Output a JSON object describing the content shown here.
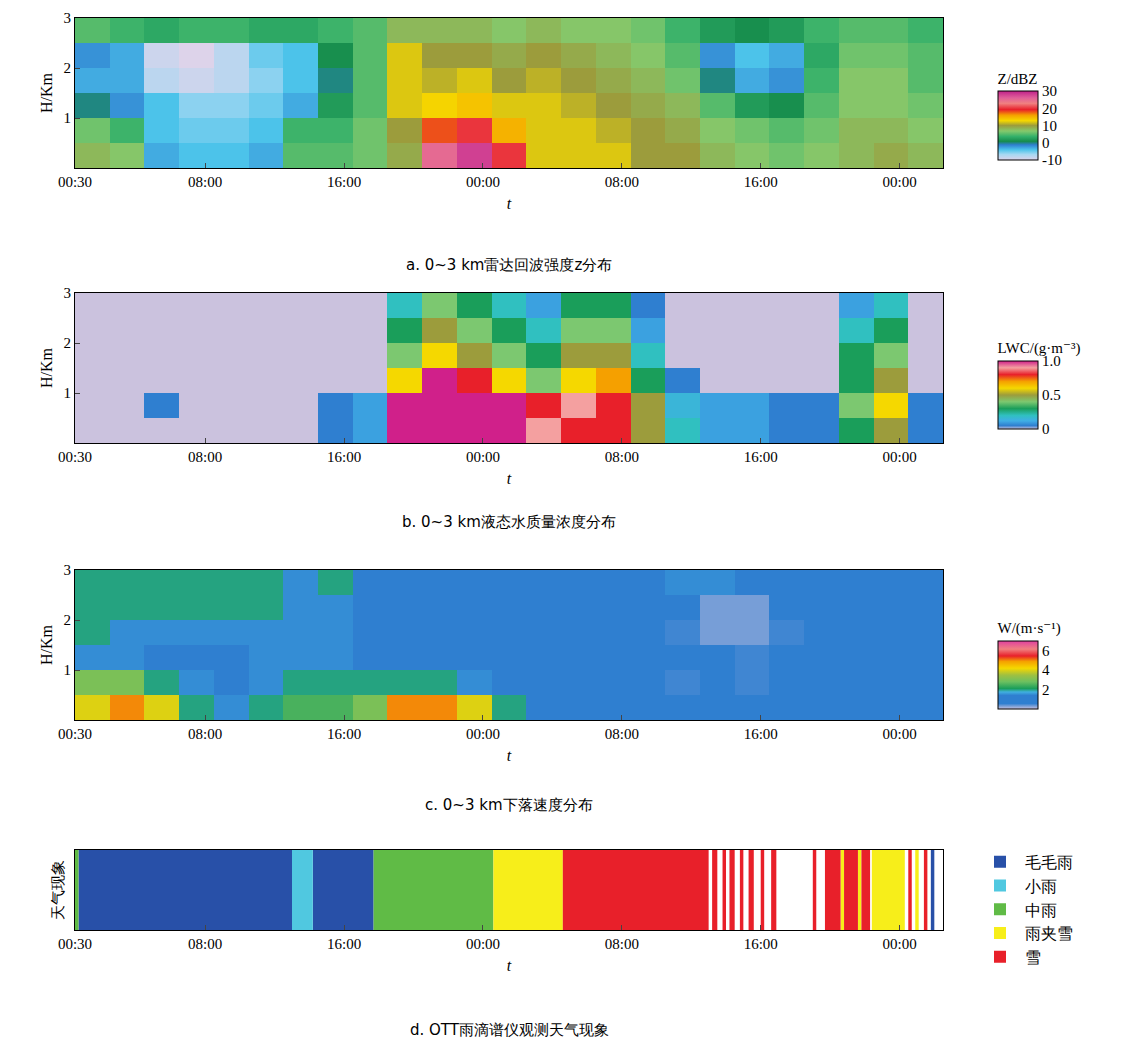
{
  "chart_data": [
    {
      "type": "heatmap",
      "title": "a. 0~3 km雷达回波强度z分布",
      "xlabel": "t",
      "ylabel": "H/Km",
      "x": [
        1.5,
        3.5,
        5.5,
        7.5,
        9.5,
        11.5,
        13.5,
        15.5,
        17.5,
        19.5,
        21.5,
        23.5,
        25.5,
        27.5,
        29.5,
        31.5,
        33.5,
        35.5,
        37.5,
        39.5,
        41.5,
        43.5,
        45.5,
        47.5,
        49.5
      ],
      "y": [
        0.25,
        0.75,
        1.25,
        1.75,
        2.25,
        2.75
      ],
      "cells": [
        [
          8,
          7,
          -3,
          -4,
          -4,
          -3,
          5,
          5,
          6,
          9,
          25,
          28,
          20,
          12,
          12,
          12,
          10,
          10,
          8,
          7,
          6,
          7,
          8,
          9,
          8
        ],
        [
          6,
          4,
          -4,
          -5,
          -5,
          -4,
          4,
          4,
          6,
          10,
          18,
          20,
          15,
          12,
          12,
          11,
          10,
          9,
          7,
          6,
          5,
          6,
          8,
          8,
          7
        ],
        [
          0,
          -2,
          -4,
          -6,
          -6,
          -5,
          -3,
          2,
          5,
          12,
          13,
          14,
          12,
          12,
          11,
          10,
          9,
          8,
          5,
          2,
          1,
          5,
          7,
          7,
          6
        ],
        [
          -3,
          -3,
          -8,
          -9,
          -8,
          -6,
          -4,
          0,
          5,
          12,
          11,
          12,
          10,
          11,
          10,
          9,
          8,
          6,
          0,
          -3,
          -2,
          4,
          7,
          7,
          5
        ],
        [
          -2,
          -3,
          -9,
          -10,
          -8,
          -5,
          -4,
          1,
          5,
          12,
          10,
          10,
          9,
          10,
          9,
          8,
          7,
          5,
          -2,
          -4,
          -3,
          3,
          6,
          6,
          5
        ],
        [
          5,
          4,
          3,
          4,
          4,
          3,
          3,
          4,
          5,
          8,
          8,
          8,
          7,
          8,
          7,
          7,
          6,
          4,
          2,
          1,
          2,
          4,
          5,
          5,
          4
        ]
      ],
      "xlim": [
        0.5,
        50.5
      ],
      "xticks": [
        {
          "value": 0.5,
          "label": "00:30"
        },
        {
          "value": 8,
          "label": "08:00"
        },
        {
          "value": 16,
          "label": "16:00"
        },
        {
          "value": 24,
          "label": "00:00"
        },
        {
          "value": 32,
          "label": "08:00"
        },
        {
          "value": 40,
          "label": "16:00"
        },
        {
          "value": 48,
          "label": "00:00"
        }
      ],
      "ylim": [
        0,
        3
      ],
      "yticks": [
        1,
        2,
        3
      ],
      "colorbar_title": "Z/dBZ",
      "colorbar_range": [
        -10,
        30
      ],
      "colorbar_ticks": [
        -10,
        0,
        10,
        20,
        30
      ]
    },
    {
      "type": "heatmap",
      "title": "b. 0~3 km液态水质量浓度分布",
      "xlabel": "t",
      "ylabel": "H/Km",
      "x": [
        1.5,
        3.5,
        5.5,
        7.5,
        9.5,
        11.5,
        13.5,
        15.5,
        17.5,
        19.5,
        21.5,
        23.5,
        25.5,
        27.5,
        29.5,
        31.5,
        33.5,
        35.5,
        37.5,
        39.5,
        41.5,
        43.5,
        45.5,
        47.5,
        49.5
      ],
      "y": [
        0.25,
        0.75,
        1.25,
        1.75,
        2.25,
        2.75
      ],
      "cells": [
        [
          0,
          0,
          0,
          0,
          0,
          0,
          0,
          0.05,
          0.1,
          1,
          1,
          1,
          1,
          0.9,
          0.8,
          0.8,
          0.5,
          0.2,
          0.1,
          0.1,
          0.05,
          0.05,
          0.3,
          0.5,
          0.05
        ],
        [
          0,
          0,
          0.05,
          0,
          0,
          0,
          0,
          0.05,
          0.1,
          1,
          1,
          1,
          1,
          0.8,
          0.9,
          0.8,
          0.5,
          0.15,
          0.1,
          0.1,
          0.05,
          0.05,
          0.4,
          0.6,
          0.05
        ],
        [
          0,
          0,
          0,
          0,
          0,
          0,
          0,
          0,
          0,
          0.6,
          1,
          0.8,
          0.6,
          0.4,
          0.6,
          0.7,
          0.3,
          0.05,
          0,
          0,
          0,
          0,
          0.3,
          0.5,
          0
        ],
        [
          0,
          0,
          0,
          0,
          0,
          0,
          0,
          0,
          0,
          0.4,
          0.6,
          0.5,
          0.4,
          0.3,
          0.5,
          0.5,
          0.2,
          0,
          0,
          0,
          0,
          0,
          0.3,
          0.4,
          0
        ],
        [
          0,
          0,
          0,
          0,
          0,
          0,
          0,
          0,
          0,
          0.3,
          0.5,
          0.4,
          0.3,
          0.2,
          0.4,
          0.4,
          0.1,
          0,
          0,
          0,
          0,
          0,
          0.2,
          0.3,
          0
        ],
        [
          0,
          0,
          0,
          0,
          0,
          0,
          0,
          0,
          0,
          0.2,
          0.4,
          0.3,
          0.2,
          0.1,
          0.3,
          0.3,
          0.05,
          0,
          0,
          0,
          0,
          0,
          0.1,
          0.2,
          0
        ]
      ],
      "xlim": [
        0.5,
        50.5
      ],
      "xticks": [
        {
          "value": 0.5,
          "label": "00:30"
        },
        {
          "value": 8,
          "label": "08:00"
        },
        {
          "value": 16,
          "label": "16:00"
        },
        {
          "value": 24,
          "label": "00:00"
        },
        {
          "value": 32,
          "label": "08:00"
        },
        {
          "value": 40,
          "label": "16:00"
        },
        {
          "value": 48,
          "label": "00:00"
        }
      ],
      "ylim": [
        0,
        3
      ],
      "yticks": [
        1,
        2,
        3
      ],
      "colorbar_title": "LWC/(g·m⁻³)",
      "colorbar_range": [
        0,
        1
      ],
      "colorbar_ticks": [
        0,
        0.5,
        {
          "value": 1,
          "label": "1.0"
        }
      ]
    },
    {
      "type": "heatmap",
      "title": "c. 0~3 km下落速度分布",
      "xlabel": "t",
      "ylabel": "H/Km",
      "x": [
        1.5,
        3.5,
        5.5,
        7.5,
        9.5,
        11.5,
        13.5,
        15.5,
        17.5,
        19.5,
        21.5,
        23.5,
        25.5,
        27.5,
        29.5,
        31.5,
        33.5,
        35.5,
        37.5,
        39.5,
        41.5,
        43.5,
        45.5,
        47.5,
        49.5
      ],
      "y": [
        0.25,
        0.75,
        1.25,
        1.75,
        2.25,
        2.75
      ],
      "cells": [
        [
          4,
          5,
          4,
          2,
          1.5,
          2,
          2.5,
          2.5,
          3,
          5,
          5,
          4,
          2,
          1,
          1,
          1,
          1,
          1,
          1,
          1,
          1,
          1,
          1,
          1,
          1
        ],
        [
          3,
          3,
          2,
          1.5,
          1,
          1.5,
          2,
          2,
          2,
          2,
          2,
          1.5,
          1,
          1,
          1,
          1,
          1,
          0.5,
          0.8,
          0.5,
          1,
          1,
          1,
          1,
          1
        ],
        [
          1.5,
          1.5,
          1,
          1,
          1,
          1.5,
          1.5,
          1.5,
          1,
          1,
          1,
          1,
          1,
          1,
          1,
          1,
          1,
          0.8,
          0.8,
          0.5,
          0.8,
          1,
          1,
          1,
          1
        ],
        [
          2,
          1.5,
          1.5,
          1.5,
          1.5,
          1.5,
          1.5,
          1.5,
          1,
          1,
          1,
          1,
          1,
          1,
          1,
          1,
          1,
          0.5,
          0.3,
          0.3,
          0.5,
          1,
          1,
          1,
          1
        ],
        [
          2,
          2,
          2,
          2,
          2,
          2,
          1.5,
          1.5,
          1,
          1,
          1,
          1,
          1,
          1,
          1,
          1,
          1,
          0.8,
          0.3,
          0.3,
          0.8,
          1,
          1,
          1,
          1
        ],
        [
          2,
          2,
          2,
          2,
          2,
          2,
          1.5,
          2,
          1,
          1,
          1,
          1,
          1,
          1,
          1,
          1,
          1,
          1.5,
          1.5,
          1,
          1,
          1,
          1,
          1,
          1
        ]
      ],
      "xlim": [
        0.5,
        50.5
      ],
      "xticks": [
        {
          "value": 0.5,
          "label": "00:30"
        },
        {
          "value": 8,
          "label": "08:00"
        },
        {
          "value": 16,
          "label": "16:00"
        },
        {
          "value": 24,
          "label": "00:00"
        },
        {
          "value": 32,
          "label": "08:00"
        },
        {
          "value": 40,
          "label": "16:00"
        },
        {
          "value": 48,
          "label": "00:00"
        }
      ],
      "ylim": [
        0,
        3
      ],
      "yticks": [
        1,
        2,
        3
      ],
      "colorbar_title": "W/(m·s⁻¹)",
      "colorbar_range": [
        0,
        7
      ],
      "colorbar_ticks": [
        2,
        4,
        6
      ]
    },
    {
      "type": "timeline",
      "title": "d. OTT雨滴谱仪观测天气现象",
      "xlabel": "t",
      "ylabel": "天气现象",
      "xlim": [
        0.5,
        50.5
      ],
      "xticks": [
        {
          "value": 0.5,
          "label": "00:30"
        },
        {
          "value": 8,
          "label": "08:00"
        },
        {
          "value": 16,
          "label": "16:00"
        },
        {
          "value": 24,
          "label": "00:00"
        },
        {
          "value": 32,
          "label": "08:00"
        },
        {
          "value": 40,
          "label": "16:00"
        },
        {
          "value": 48,
          "label": "00:00"
        }
      ],
      "tick_labels": "x",
      "legend": "right",
      "series": [
        {
          "name": "毛毛雨",
          "color": "#2850a8",
          "segments": [
            [
              0.7,
              13.0
            ],
            [
              14.2,
              17.7
            ],
            [
              49.8,
              50.0
            ]
          ]
        },
        {
          "name": "小雨",
          "color": "#50c8e0",
          "segments": [
            [
              13.0,
              14.2
            ]
          ]
        },
        {
          "name": "中雨",
          "color": "#60bb46",
          "segments": [
            [
              0.5,
              0.7
            ],
            [
              17.7,
              24.6
            ]
          ]
        },
        {
          "name": "雨夹雪",
          "color": "#f7ee1a",
          "segments": [
            [
              24.6,
              28.6
            ],
            [
              44.6,
              44.8
            ],
            [
              45.6,
              45.8
            ],
            [
              46.4,
              48.3
            ],
            [
              48.9,
              49.1
            ]
          ]
        },
        {
          "name": "雪",
          "color": "#e8202a",
          "segments": [
            [
              28.6,
              37.0
            ],
            [
              37.2,
              37.5
            ],
            [
              37.8,
              38.0
            ],
            [
              38.2,
              38.5
            ],
            [
              38.8,
              39.0
            ],
            [
              39.3,
              39.6
            ],
            [
              40.0,
              40.2
            ],
            [
              40.6,
              40.9
            ],
            [
              43.0,
              43.2
            ],
            [
              43.7,
              44.6
            ],
            [
              44.8,
              45.6
            ],
            [
              45.8,
              46.3
            ],
            [
              48.5,
              48.7
            ],
            [
              49.4,
              49.6
            ]
          ]
        }
      ]
    }
  ]
}
